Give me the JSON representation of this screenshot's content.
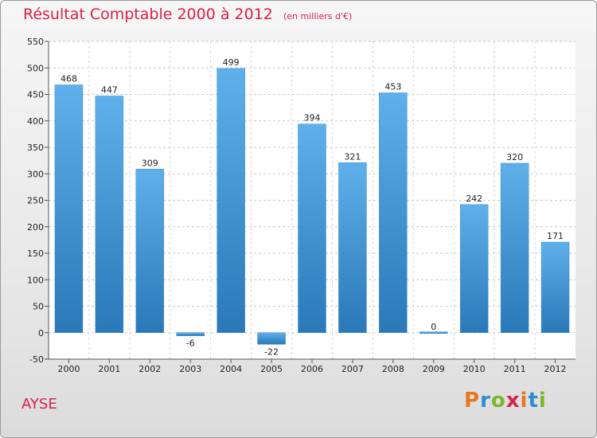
{
  "title": "Résultat Comptable 2000 à 2012",
  "subtitle": "(en milliers d'€)",
  "place": "AYSE",
  "logo": {
    "letters": [
      "P",
      "r",
      "o",
      "x",
      "i",
      "t",
      "i"
    ],
    "colors": [
      "#e8761f",
      "#2e8bd3",
      "#79b829",
      "#d6224f",
      "#e8761f",
      "#2e8bd3",
      "#79b829"
    ]
  },
  "colors": {
    "bar_light": "#5fb0ea",
    "bar_dark": "#2a78b8",
    "title": "#d6224f"
  },
  "chart_data": {
    "type": "bar",
    "title": "Résultat Comptable 2000 à 2012",
    "ylabel": "en milliers d'€",
    "xlabel": "",
    "categories": [
      "2000",
      "2001",
      "2002",
      "2003",
      "2004",
      "2005",
      "2006",
      "2007",
      "2008",
      "2009",
      "2010",
      "2011",
      "2012"
    ],
    "values": [
      468,
      447,
      309,
      -6,
      499,
      -22,
      394,
      321,
      453,
      0,
      242,
      320,
      171
    ],
    "value_labels": [
      "468",
      "447",
      "309",
      "-6",
      "499",
      "-22",
      "394",
      "321",
      "453",
      "0",
      "242",
      "320",
      "171"
    ],
    "ylim": [
      -50,
      550
    ],
    "yticks": [
      -50,
      0,
      50,
      100,
      150,
      200,
      250,
      300,
      350,
      400,
      450,
      500,
      550
    ],
    "grid": true
  }
}
